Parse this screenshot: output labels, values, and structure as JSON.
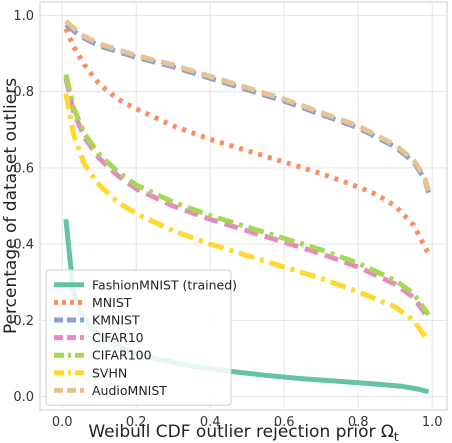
{
  "chart_data": {
    "type": "line",
    "xlabel": "Weibull CDF outlier rejection prior Ω",
    "xlabel_sub": "t",
    "ylabel": "Percentage of dataset outliers",
    "xlim": [
      -0.06,
      1.04
    ],
    "ylim": [
      -0.035,
      1.035
    ],
    "xticks": [
      0.0,
      0.2,
      0.4,
      0.6,
      0.8,
      1.0
    ],
    "xtick_labels": [
      "0.0",
      "0.2",
      "0.4",
      "0.6",
      "0.8",
      "1.0"
    ],
    "yticks": [
      0.0,
      0.2,
      0.4,
      0.6,
      0.8,
      1.0
    ],
    "ytick_labels": [
      "0.0",
      "0.2",
      "0.4",
      "0.6",
      "0.8",
      "1.0"
    ],
    "grid": true,
    "legend_position": "lower-left",
    "series": [
      {
        "name": "FashionMNIST (trained)",
        "color": "#66c2a5",
        "dash": "solid",
        "x": [
          0.01,
          0.02,
          0.03,
          0.05,
          0.08,
          0.12,
          0.18,
          0.25,
          0.35,
          0.45,
          0.55,
          0.65,
          0.75,
          0.85,
          0.92,
          0.96,
          0.99
        ],
        "y": [
          0.465,
          0.37,
          0.28,
          0.22,
          0.18,
          0.15,
          0.12,
          0.1,
          0.08,
          0.067,
          0.056,
          0.047,
          0.04,
          0.033,
          0.027,
          0.02,
          0.013
        ]
      },
      {
        "name": "MNIST",
        "color": "#fc8d62",
        "dash": "dotted",
        "x": [
          0.01,
          0.03,
          0.06,
          0.1,
          0.15,
          0.2,
          0.3,
          0.4,
          0.5,
          0.6,
          0.7,
          0.8,
          0.85,
          0.9,
          0.95,
          0.99
        ],
        "y": [
          0.965,
          0.92,
          0.87,
          0.82,
          0.78,
          0.755,
          0.71,
          0.675,
          0.645,
          0.615,
          0.585,
          0.55,
          0.53,
          0.5,
          0.45,
          0.375
        ]
      },
      {
        "name": "KMNIST",
        "color": "#8da0cb",
        "dash": "dashed",
        "x": [
          0.01,
          0.05,
          0.1,
          0.2,
          0.3,
          0.4,
          0.5,
          0.6,
          0.7,
          0.8,
          0.9,
          0.95,
          0.98,
          0.99
        ],
        "y": [
          0.975,
          0.945,
          0.92,
          0.89,
          0.865,
          0.835,
          0.805,
          0.775,
          0.74,
          0.705,
          0.655,
          0.615,
          0.57,
          0.535
        ]
      },
      {
        "name": "CIFAR10",
        "color": "#e78ac3",
        "dash": "dashed",
        "x": [
          0.01,
          0.03,
          0.06,
          0.1,
          0.15,
          0.2,
          0.3,
          0.4,
          0.5,
          0.6,
          0.7,
          0.8,
          0.9,
          0.95,
          0.99
        ],
        "y": [
          0.835,
          0.75,
          0.68,
          0.625,
          0.58,
          0.545,
          0.5,
          0.465,
          0.435,
          0.405,
          0.375,
          0.34,
          0.295,
          0.26,
          0.205
        ]
      },
      {
        "name": "CIFAR100",
        "color": "#a6d854",
        "dash": "dashdot",
        "x": [
          0.01,
          0.03,
          0.06,
          0.1,
          0.15,
          0.2,
          0.3,
          0.4,
          0.5,
          0.6,
          0.7,
          0.8,
          0.9,
          0.95,
          0.99
        ],
        "y": [
          0.845,
          0.76,
          0.69,
          0.635,
          0.59,
          0.555,
          0.51,
          0.475,
          0.445,
          0.415,
          0.385,
          0.35,
          0.305,
          0.27,
          0.215
        ]
      },
      {
        "name": "SVHN",
        "color": "#ffd92f",
        "dash": "dashdot",
        "x": [
          0.01,
          0.03,
          0.06,
          0.1,
          0.15,
          0.2,
          0.3,
          0.4,
          0.5,
          0.6,
          0.7,
          0.8,
          0.9,
          0.95,
          0.99
        ],
        "y": [
          0.795,
          0.69,
          0.61,
          0.555,
          0.51,
          0.48,
          0.435,
          0.4,
          0.37,
          0.34,
          0.31,
          0.275,
          0.235,
          0.2,
          0.145
        ]
      },
      {
        "name": "AudioMNIST",
        "color": "#e5c494",
        "dash": "dashed",
        "x": [
          0.01,
          0.05,
          0.1,
          0.2,
          0.3,
          0.4,
          0.5,
          0.6,
          0.7,
          0.8,
          0.9,
          0.95,
          0.98,
          0.99
        ],
        "y": [
          0.985,
          0.95,
          0.925,
          0.895,
          0.87,
          0.84,
          0.81,
          0.78,
          0.745,
          0.71,
          0.66,
          0.62,
          0.575,
          0.54
        ]
      }
    ]
  }
}
